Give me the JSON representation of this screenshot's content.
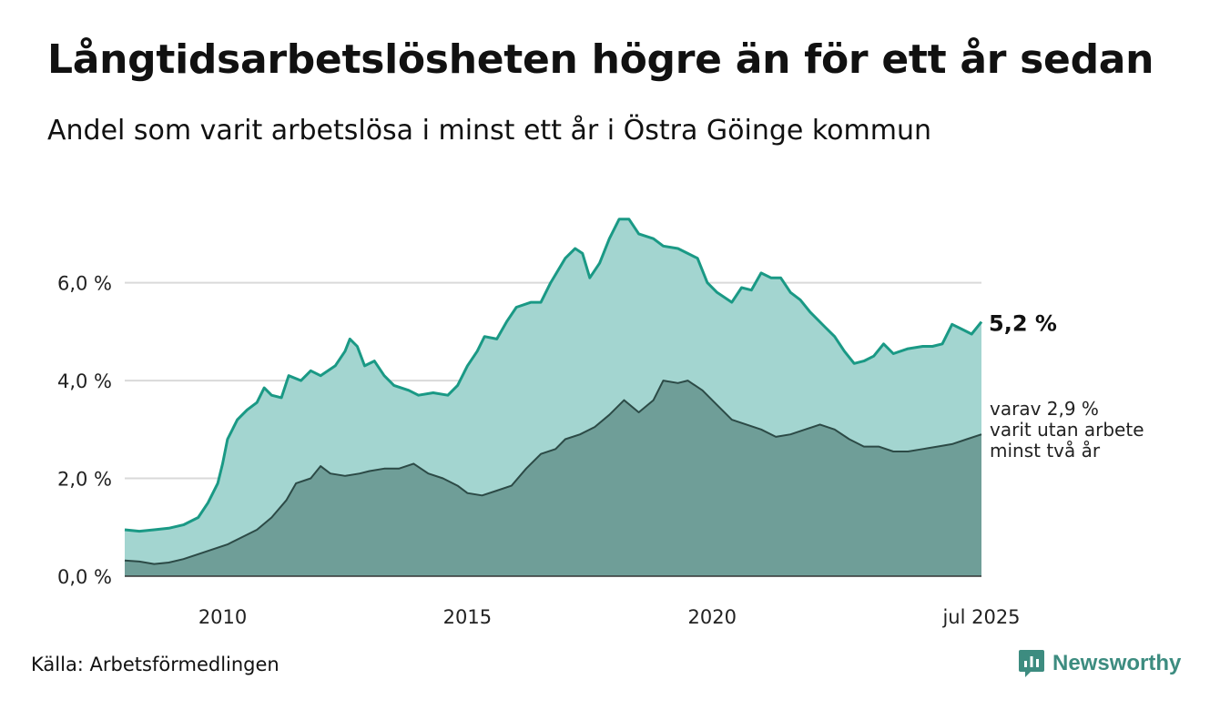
{
  "title": "Långtidsarbetslösheten högre än för ett år sedan",
  "subtitle": "Andel som varit arbetslösa i minst ett år i Östra Göinge kommun",
  "source": "Källa: Arbetsförmedlingen",
  "logo_text": "Newsworthy",
  "colors": {
    "long_line": "#1a9985",
    "long_fill": "#a3d5d0",
    "vlong_line": "#2c4a46",
    "vlong_fill": "#6f9e98",
    "grid": "#d9d9d9",
    "logo": "#3d8c80"
  },
  "chart_data": {
    "type": "area",
    "ylim": [
      0,
      7.5
    ],
    "y_ticks": [
      0,
      2,
      4,
      6
    ],
    "y_tick_labels": [
      "0,0 %",
      "2,0 %",
      "4,0 %",
      "6,0 %"
    ],
    "x_ticks": [
      2010,
      2015,
      2020,
      2025.5
    ],
    "x_tick_labels": [
      "2010",
      "2015",
      "2020",
      "jul 2025"
    ],
    "grid": true,
    "end_label_primary": "5,2 %",
    "end_label_secondary": [
      "varav 2,9 %",
      "varit utan arbete",
      "minst två år"
    ],
    "series": [
      {
        "key": "minst_ett_ar",
        "points": [
          [
            2008,
            0.95
          ],
          [
            2008.3,
            0.92
          ],
          [
            2008.6,
            0.95
          ],
          [
            2008.9,
            0.98
          ],
          [
            2009.2,
            1.05
          ],
          [
            2009.5,
            1.2
          ],
          [
            2009.7,
            1.5
          ],
          [
            2009.9,
            1.9
          ],
          [
            2010.0,
            2.3
          ],
          [
            2010.1,
            2.8
          ],
          [
            2010.3,
            3.2
          ],
          [
            2010.5,
            3.4
          ],
          [
            2010.7,
            3.55
          ],
          [
            2010.85,
            3.85
          ],
          [
            2011.0,
            3.7
          ],
          [
            2011.2,
            3.65
          ],
          [
            2011.35,
            4.1
          ],
          [
            2011.6,
            4.0
          ],
          [
            2011.8,
            4.2
          ],
          [
            2012.0,
            4.1
          ],
          [
            2012.3,
            4.3
          ],
          [
            2012.5,
            4.6
          ],
          [
            2012.6,
            4.85
          ],
          [
            2012.75,
            4.7
          ],
          [
            2012.9,
            4.3
          ],
          [
            2013.1,
            4.4
          ],
          [
            2013.3,
            4.1
          ],
          [
            2013.5,
            3.9
          ],
          [
            2013.8,
            3.8
          ],
          [
            2014.0,
            3.7
          ],
          [
            2014.3,
            3.75
          ],
          [
            2014.6,
            3.7
          ],
          [
            2014.8,
            3.9
          ],
          [
            2015.0,
            4.3
          ],
          [
            2015.2,
            4.6
          ],
          [
            2015.35,
            4.9
          ],
          [
            2015.6,
            4.85
          ],
          [
            2015.8,
            5.2
          ],
          [
            2016.0,
            5.5
          ],
          [
            2016.3,
            5.6
          ],
          [
            2016.5,
            5.6
          ],
          [
            2016.7,
            6.0
          ],
          [
            2017.0,
            6.5
          ],
          [
            2017.2,
            6.7
          ],
          [
            2017.35,
            6.6
          ],
          [
            2017.5,
            6.1
          ],
          [
            2017.7,
            6.4
          ],
          [
            2017.9,
            6.9
          ],
          [
            2018.1,
            7.3
          ],
          [
            2018.3,
            7.3
          ],
          [
            2018.5,
            7.0
          ],
          [
            2018.8,
            6.9
          ],
          [
            2019.0,
            6.75
          ],
          [
            2019.3,
            6.7
          ],
          [
            2019.5,
            6.6
          ],
          [
            2019.7,
            6.5
          ],
          [
            2019.9,
            6.0
          ],
          [
            2020.1,
            5.8
          ],
          [
            2020.4,
            5.6
          ],
          [
            2020.6,
            5.9
          ],
          [
            2020.8,
            5.85
          ],
          [
            2021.0,
            6.2
          ],
          [
            2021.2,
            6.1
          ],
          [
            2021.4,
            6.1
          ],
          [
            2021.6,
            5.8
          ],
          [
            2021.8,
            5.65
          ],
          [
            2022.0,
            5.4
          ],
          [
            2022.3,
            5.1
          ],
          [
            2022.5,
            4.9
          ],
          [
            2022.7,
            4.6
          ],
          [
            2022.9,
            4.35
          ],
          [
            2023.1,
            4.4
          ],
          [
            2023.3,
            4.5
          ],
          [
            2023.5,
            4.75
          ],
          [
            2023.7,
            4.55
          ],
          [
            2024.0,
            4.65
          ],
          [
            2024.3,
            4.7
          ],
          [
            2024.5,
            4.7
          ],
          [
            2024.7,
            4.75
          ],
          [
            2024.9,
            5.15
          ],
          [
            2025.1,
            5.05
          ],
          [
            2025.3,
            4.95
          ],
          [
            2025.5,
            5.2
          ]
        ]
      },
      {
        "key": "minst_tva_ar",
        "points": [
          [
            2008,
            0.32
          ],
          [
            2008.3,
            0.3
          ],
          [
            2008.6,
            0.25
          ],
          [
            2008.9,
            0.28
          ],
          [
            2009.2,
            0.35
          ],
          [
            2009.5,
            0.45
          ],
          [
            2009.8,
            0.55
          ],
          [
            2010.1,
            0.65
          ],
          [
            2010.4,
            0.8
          ],
          [
            2010.7,
            0.95
          ],
          [
            2011.0,
            1.2
          ],
          [
            2011.3,
            1.55
          ],
          [
            2011.5,
            1.9
          ],
          [
            2011.8,
            2.0
          ],
          [
            2012.0,
            2.25
          ],
          [
            2012.2,
            2.1
          ],
          [
            2012.5,
            2.05
          ],
          [
            2012.8,
            2.1
          ],
          [
            2013.0,
            2.15
          ],
          [
            2013.3,
            2.2
          ],
          [
            2013.6,
            2.2
          ],
          [
            2013.9,
            2.3
          ],
          [
            2014.2,
            2.1
          ],
          [
            2014.5,
            2.0
          ],
          [
            2014.8,
            1.85
          ],
          [
            2015.0,
            1.7
          ],
          [
            2015.3,
            1.65
          ],
          [
            2015.6,
            1.75
          ],
          [
            2015.9,
            1.85
          ],
          [
            2016.2,
            2.2
          ],
          [
            2016.5,
            2.5
          ],
          [
            2016.8,
            2.6
          ],
          [
            2017.0,
            2.8
          ],
          [
            2017.3,
            2.9
          ],
          [
            2017.6,
            3.05
          ],
          [
            2017.9,
            3.3
          ],
          [
            2018.2,
            3.6
          ],
          [
            2018.5,
            3.35
          ],
          [
            2018.8,
            3.6
          ],
          [
            2019.0,
            4.0
          ],
          [
            2019.3,
            3.95
          ],
          [
            2019.5,
            4.0
          ],
          [
            2019.8,
            3.8
          ],
          [
            2020.1,
            3.5
          ],
          [
            2020.4,
            3.2
          ],
          [
            2020.7,
            3.1
          ],
          [
            2021.0,
            3.0
          ],
          [
            2021.3,
            2.85
          ],
          [
            2021.6,
            2.9
          ],
          [
            2021.9,
            3.0
          ],
          [
            2022.2,
            3.1
          ],
          [
            2022.5,
            3.0
          ],
          [
            2022.8,
            2.8
          ],
          [
            2023.1,
            2.65
          ],
          [
            2023.4,
            2.65
          ],
          [
            2023.7,
            2.55
          ],
          [
            2024.0,
            2.55
          ],
          [
            2024.3,
            2.6
          ],
          [
            2024.6,
            2.65
          ],
          [
            2024.9,
            2.7
          ],
          [
            2025.2,
            2.8
          ],
          [
            2025.5,
            2.9
          ]
        ]
      }
    ]
  }
}
